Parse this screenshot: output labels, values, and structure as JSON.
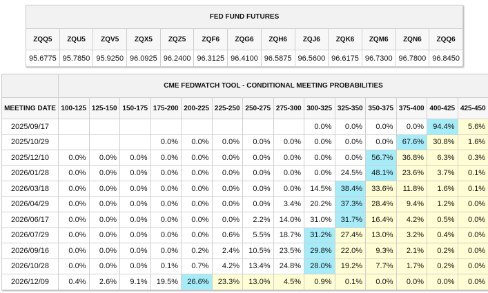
{
  "futures": {
    "title": "FED FUND FUTURES",
    "contracts": [
      "ZQQ5",
      "ZQU5",
      "ZQV5",
      "ZQX5",
      "ZQZ5",
      "ZQF6",
      "ZQG6",
      "ZQH6",
      "ZQJ6",
      "ZQK6",
      "ZQM6",
      "ZQN6",
      "ZQQ6"
    ],
    "prices": [
      "95.6775",
      "95.7850",
      "95.9250",
      "96.0925",
      "96.2400",
      "96.3125",
      "96.4100",
      "96.5875",
      "96.5600",
      "96.6175",
      "96.7300",
      "96.7800",
      "96.8450"
    ]
  },
  "probabilities": {
    "title": "CME FEDWATCH TOOL - CONDITIONAL MEETING PROBABILITIES",
    "meeting_date_header": "MEETING DATE",
    "ranges": [
      "100-125",
      "125-150",
      "150-175",
      "175-200",
      "200-225",
      "225-250",
      "250-275",
      "275-300",
      "300-325",
      "325-350",
      "350-375",
      "375-400",
      "400-425",
      "425-450"
    ],
    "rows": [
      {
        "date": "2025/09/17",
        "values": [
          "",
          "",
          "",
          "",
          "",
          "",
          "",
          "",
          "0.0%",
          "0.0%",
          "0.0%",
          "0.0%",
          "94.4%",
          "5.6%"
        ]
      },
      {
        "date": "2025/10/29",
        "values": [
          "",
          "",
          "",
          "0.0%",
          "0.0%",
          "0.0%",
          "0.0%",
          "0.0%",
          "0.0%",
          "0.0%",
          "0.0%",
          "67.6%",
          "30.8%",
          "1.6%"
        ]
      },
      {
        "date": "2025/12/10",
        "values": [
          "0.0%",
          "0.0%",
          "0.0%",
          "0.0%",
          "0.0%",
          "0.0%",
          "0.0%",
          "0.0%",
          "0.0%",
          "0.0%",
          "56.7%",
          "36.8%",
          "6.3%",
          "0.3%"
        ]
      },
      {
        "date": "2026/01/28",
        "values": [
          "0.0%",
          "0.0%",
          "0.0%",
          "0.0%",
          "0.0%",
          "0.0%",
          "0.0%",
          "0.0%",
          "0.0%",
          "24.5%",
          "48.1%",
          "23.6%",
          "3.7%",
          "0.1%"
        ]
      },
      {
        "date": "2026/03/18",
        "values": [
          "0.0%",
          "0.0%",
          "0.0%",
          "0.0%",
          "0.0%",
          "0.0%",
          "0.0%",
          "0.0%",
          "14.5%",
          "38.4%",
          "33.6%",
          "11.8%",
          "1.6%",
          "0.1%"
        ]
      },
      {
        "date": "2026/04/29",
        "values": [
          "0.0%",
          "0.0%",
          "0.0%",
          "0.0%",
          "0.0%",
          "0.0%",
          "0.0%",
          "3.4%",
          "20.2%",
          "37.3%",
          "28.4%",
          "9.4%",
          "1.2%",
          "0.0%"
        ]
      },
      {
        "date": "2026/06/17",
        "values": [
          "0.0%",
          "0.0%",
          "0.0%",
          "0.0%",
          "0.0%",
          "0.0%",
          "2.2%",
          "14.0%",
          "31.0%",
          "31.7%",
          "16.4%",
          "4.2%",
          "0.5%",
          "0.0%"
        ]
      },
      {
        "date": "2026/07/29",
        "values": [
          "0.0%",
          "0.0%",
          "0.0%",
          "0.0%",
          "0.0%",
          "0.6%",
          "5.5%",
          "18.7%",
          "31.2%",
          "27.4%",
          "13.0%",
          "3.2%",
          "0.4%",
          "0.0%"
        ]
      },
      {
        "date": "2026/09/16",
        "values": [
          "0.0%",
          "0.0%",
          "0.0%",
          "0.0%",
          "0.2%",
          "2.4%",
          "10.5%",
          "23.5%",
          "29.8%",
          "22.0%",
          "9.3%",
          "2.1%",
          "0.2%",
          "0.0%"
        ]
      },
      {
        "date": "2026/10/28",
        "values": [
          "0.0%",
          "0.0%",
          "0.0%",
          "0.1%",
          "0.7%",
          "4.2%",
          "13.4%",
          "24.8%",
          "28.0%",
          "19.2%",
          "7.7%",
          "1.7%",
          "0.2%",
          "0.0%"
        ]
      },
      {
        "date": "2026/12/09",
        "values": [
          "0.4%",
          "2.6%",
          "9.1%",
          "19.5%",
          "26.6%",
          "23.3%",
          "13.0%",
          "4.5%",
          "0.9%",
          "0.1%",
          "0.0%",
          "0.0%",
          "0.0%",
          "0.0%"
        ]
      }
    ],
    "colors": {
      "highlight_max": "#a5ecf8",
      "highlight_band": "#fffdd3"
    }
  }
}
